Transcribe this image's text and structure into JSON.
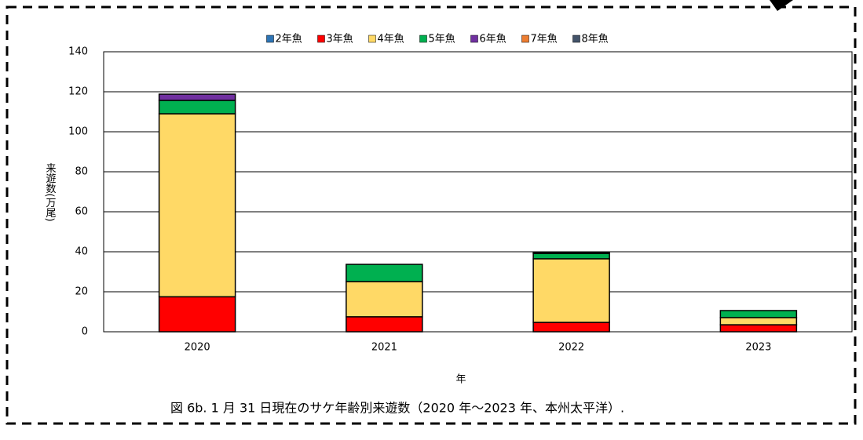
{
  "chart_data": {
    "type": "stacked_bar",
    "categories": [
      "2020",
      "2021",
      "2022",
      "2023"
    ],
    "series": [
      {
        "name": "2年魚",
        "color": "#2e75b6",
        "values": [
          0,
          0,
          0,
          0
        ]
      },
      {
        "name": "3年魚",
        "color": "#ff0000",
        "values": [
          17.5,
          7.5,
          4.7,
          3.5
        ]
      },
      {
        "name": "4年魚",
        "color": "#ffd966",
        "values": [
          91.5,
          17.6,
          31.8,
          3.6
        ]
      },
      {
        "name": "5年魚",
        "color": "#00b050",
        "values": [
          6.7,
          8.6,
          2.7,
          3.5
        ]
      },
      {
        "name": "6年魚",
        "color": "#7030a0",
        "values": [
          3.1,
          0,
          0.3,
          0
        ]
      },
      {
        "name": "7年魚",
        "color": "#ed7d31",
        "values": [
          0,
          0,
          0,
          0
        ]
      },
      {
        "name": "8年魚",
        "color": "#44546a",
        "values": [
          0,
          0,
          0,
          0
        ]
      }
    ],
    "ylim": [
      0,
      140
    ],
    "yticks": [
      0,
      20,
      40,
      60,
      80,
      100,
      120,
      140
    ],
    "grid": true,
    "ylabel": "来遊数(万尾)",
    "xlabel": "年",
    "legend": "top",
    "caption": "図 6b. 1 月 31 日現在のサケ年齢別来遊数（2020 年～2023 年、本州太平洋）."
  }
}
